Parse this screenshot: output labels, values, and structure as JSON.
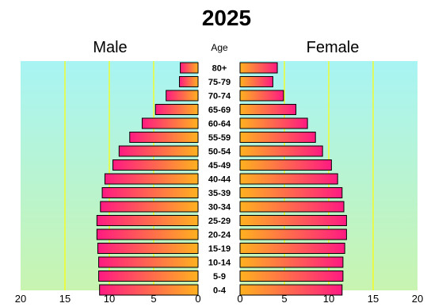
{
  "chart_data": {
    "type": "bar",
    "title": "2025",
    "age_header": "Age",
    "categories": [
      "80+",
      "75-79",
      "70-74",
      "65-69",
      "60-64",
      "55-59",
      "50-54",
      "45-49",
      "40-44",
      "35-39",
      "30-34",
      "25-29",
      "20-24",
      "15-19",
      "10-14",
      "5-9",
      "0-4"
    ],
    "series": [
      {
        "name": "Male",
        "values": [
          2.0,
          2.1,
          3.6,
          4.8,
          6.3,
          7.7,
          8.9,
          9.6,
          10.5,
          10.8,
          11.0,
          11.4,
          11.4,
          11.3,
          11.2,
          11.2,
          11.1
        ]
      },
      {
        "name": "Female",
        "values": [
          4.2,
          3.7,
          4.9,
          6.3,
          7.6,
          8.5,
          9.3,
          10.3,
          11.0,
          11.5,
          11.7,
          12.0,
          12.0,
          11.8,
          11.6,
          11.6,
          11.5
        ]
      }
    ],
    "x_ticks_left": [
      "20",
      "15",
      "10",
      "5",
      "0"
    ],
    "x_ticks_right": [
      "0",
      "5",
      "10",
      "15",
      "20"
    ],
    "xlim": [
      0,
      20
    ],
    "colors": {
      "bar_inner": "#ffb11f",
      "bar_outer": "#ff1a82",
      "bg_top": "#a8f4f4",
      "bg_bottom": "#c8f4b0",
      "grid": "#ffff00"
    }
  }
}
